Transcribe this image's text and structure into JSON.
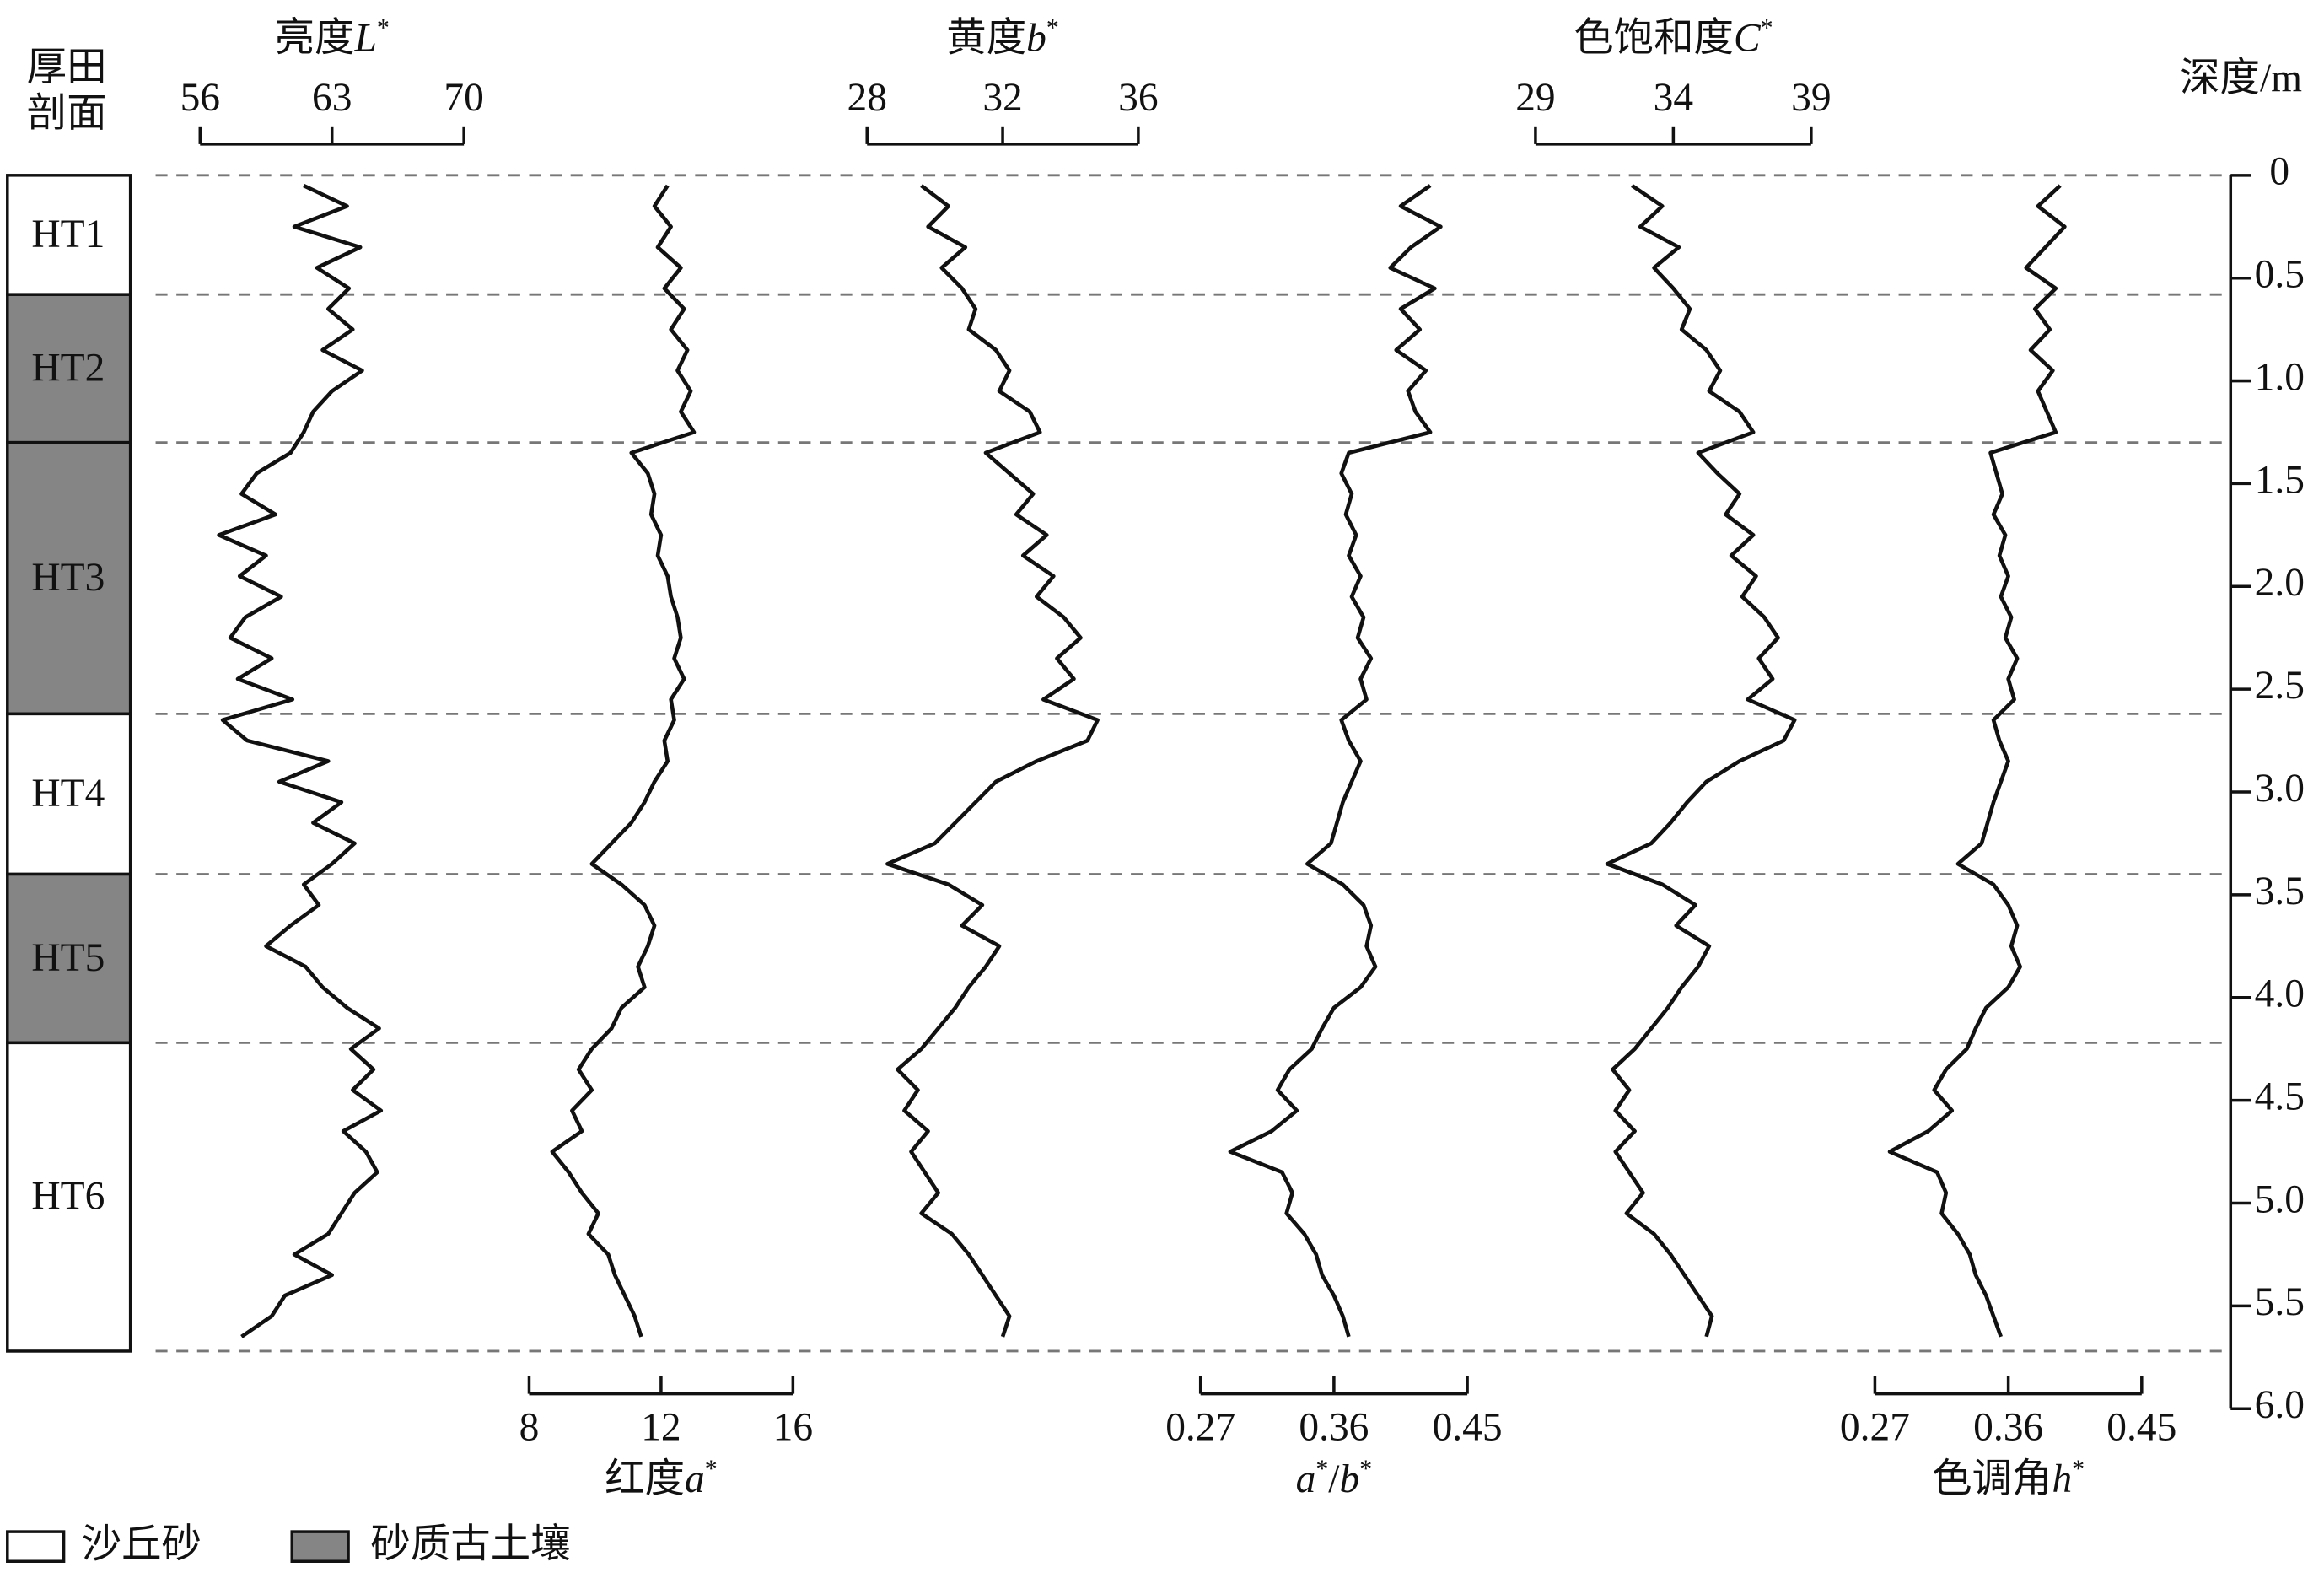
{
  "chart_data": {
    "type": "line",
    "section_label": [
      "厚田",
      "剖面"
    ],
    "y_label": "深度/m",
    "ylim": [
      0,
      6
    ],
    "yticks": [
      0,
      0.5,
      {
        "value": 1,
        "label": "1.0"
      },
      1.5,
      {
        "value": 2,
        "label": "2.0"
      },
      2.5,
      {
        "value": 3,
        "label": "3.0"
      },
      3.5,
      {
        "value": 4,
        "label": "4.0"
      },
      4.5,
      {
        "value": 5,
        "label": "5.0"
      },
      5.5,
      {
        "value": 6,
        "label": "6.0"
      }
    ],
    "legend": [
      {
        "name": "沙丘砂",
        "color": "#ffffff"
      },
      {
        "name": "砂质古土壤",
        "color": "#858585"
      }
    ],
    "units": [
      {
        "name": "HT1",
        "top": 0,
        "base": 0.58,
        "facies": 0
      },
      {
        "name": "HT2",
        "top": 0.58,
        "base": 1.3,
        "facies": 1
      },
      {
        "name": "HT3",
        "top": 1.3,
        "base": 2.62,
        "facies": 1
      },
      {
        "name": "HT4",
        "top": 2.62,
        "base": 3.4,
        "facies": 0
      },
      {
        "name": "HT5",
        "top": 3.4,
        "base": 4.22,
        "facies": 1
      },
      {
        "name": "HT6",
        "top": 4.22,
        "base": 5.72,
        "facies": 0
      }
    ],
    "x": [
      0.05,
      0.15,
      0.25,
      0.35,
      0.45,
      0.55,
      0.65,
      0.75,
      0.85,
      0.95,
      1.05,
      1.15,
      1.25,
      1.35,
      1.45,
      1.55,
      1.65,
      1.75,
      1.85,
      1.95,
      2.05,
      2.15,
      2.25,
      2.35,
      2.45,
      2.55,
      2.65,
      2.75,
      2.85,
      2.95,
      3.05,
      3.15,
      3.25,
      3.35,
      3.45,
      3.55,
      3.65,
      3.75,
      3.85,
      3.95,
      4.05,
      4.15,
      4.25,
      4.35,
      4.45,
      4.55,
      4.65,
      4.75,
      4.85,
      4.95,
      5.05,
      5.15,
      5.25,
      5.35,
      5.45,
      5.55,
      5.65
    ],
    "series": [
      {
        "name": [
          "亮度",
          "L",
          "*"
        ],
        "axis": "top",
        "color": "#111111",
        "xlim": [
          56,
          70
        ],
        "xticks": [
          56,
          63,
          70
        ],
        "values": [
          61.5,
          63.8,
          61.0,
          64.5,
          62.2,
          63.9,
          62.8,
          64.1,
          62.5,
          64.6,
          63.0,
          62.0,
          61.5,
          60.8,
          59.0,
          58.2,
          60.0,
          57.0,
          59.5,
          58.1,
          60.3,
          58.4,
          57.6,
          59.8,
          58.0,
          60.9,
          57.2,
          58.5,
          62.8,
          60.2,
          63.5,
          62.0,
          64.2,
          63.0,
          61.5,
          62.3,
          60.8,
          59.5,
          61.6,
          62.5,
          63.8,
          65.5,
          64.0,
          65.2,
          64.1,
          65.6,
          63.6,
          64.8,
          65.4,
          64.2,
          63.5,
          62.8,
          61.0,
          63.0,
          60.5,
          59.8,
          58.2
        ]
      },
      {
        "name": [
          "红度",
          "a",
          "*"
        ],
        "axis": "bottom",
        "color": "#111111",
        "xlim": [
          8,
          16
        ],
        "xticks": [
          8,
          12,
          16
        ],
        "values": [
          12.2,
          11.8,
          12.3,
          11.9,
          12.6,
          12.1,
          12.7,
          12.3,
          12.8,
          12.5,
          12.9,
          12.6,
          13.0,
          11.1,
          11.6,
          11.8,
          11.7,
          12.0,
          11.9,
          12.2,
          12.3,
          12.5,
          12.6,
          12.4,
          12.7,
          12.3,
          12.4,
          12.1,
          12.2,
          11.8,
          11.5,
          11.1,
          10.5,
          9.9,
          10.8,
          11.5,
          11.8,
          11.6,
          11.3,
          11.5,
          10.8,
          10.5,
          9.9,
          9.5,
          9.9,
          9.3,
          9.6,
          8.7,
          9.2,
          9.6,
          10.1,
          9.8,
          10.4,
          10.6,
          10.9,
          11.2,
          11.4
        ]
      },
      {
        "name": [
          "黄度",
          "b",
          "*"
        ],
        "axis": "top",
        "color": "#111111",
        "xlim": [
          28,
          36
        ],
        "xticks": [
          28,
          32,
          36
        ],
        "values": [
          29.6,
          30.4,
          29.8,
          30.9,
          30.2,
          30.8,
          31.2,
          31.0,
          31.8,
          32.2,
          31.9,
          32.8,
          33.1,
          31.5,
          32.2,
          32.9,
          32.4,
          33.3,
          32.6,
          33.5,
          33.0,
          33.8,
          34.3,
          33.6,
          34.1,
          33.2,
          34.8,
          34.5,
          33.0,
          31.8,
          31.2,
          30.6,
          30.0,
          28.6,
          30.4,
          31.4,
          30.8,
          31.9,
          31.5,
          31.0,
          30.6,
          30.1,
          29.6,
          28.9,
          29.5,
          29.1,
          29.8,
          29.3,
          29.7,
          30.1,
          29.6,
          30.5,
          31.0,
          31.4,
          31.8,
          32.2,
          32.0
        ]
      },
      {
        "name": [
          "a",
          "*",
          "/",
          "b",
          "*"
        ],
        "axis": "bottom",
        "color": "#111111",
        "xlim": [
          0.27,
          0.45
        ],
        "xticks": [
          0.27,
          0.36,
          0.45
        ],
        "values": [
          0.425,
          0.405,
          0.432,
          0.412,
          0.398,
          0.428,
          0.405,
          0.418,
          0.402,
          0.422,
          0.41,
          0.415,
          0.425,
          0.37,
          0.365,
          0.372,
          0.368,
          0.375,
          0.37,
          0.378,
          0.372,
          0.38,
          0.376,
          0.385,
          0.378,
          0.382,
          0.365,
          0.37,
          0.378,
          0.372,
          0.366,
          0.362,
          0.358,
          0.342,
          0.366,
          0.38,
          0.385,
          0.382,
          0.388,
          0.378,
          0.36,
          0.352,
          0.345,
          0.33,
          0.322,
          0.335,
          0.318,
          0.29,
          0.325,
          0.332,
          0.328,
          0.34,
          0.348,
          0.352,
          0.36,
          0.366,
          0.37
        ]
      },
      {
        "name": [
          "色饱和度",
          "C",
          "*"
        ],
        "axis": "top",
        "color": "#111111",
        "xlim": [
          29,
          39
        ],
        "xticks": [
          29,
          34,
          39
        ],
        "values": [
          32.5,
          33.6,
          32.8,
          34.2,
          33.3,
          34.0,
          34.6,
          34.3,
          35.2,
          35.7,
          35.3,
          36.4,
          36.9,
          34.9,
          35.6,
          36.4,
          35.9,
          36.9,
          36.1,
          37.0,
          36.5,
          37.3,
          37.8,
          37.1,
          37.6,
          36.7,
          38.4,
          38.0,
          36.4,
          35.2,
          34.5,
          33.9,
          33.2,
          31.6,
          33.6,
          34.8,
          34.1,
          35.3,
          34.9,
          34.3,
          33.8,
          33.2,
          32.6,
          31.8,
          32.4,
          31.9,
          32.6,
          31.9,
          32.4,
          32.9,
          32.3,
          33.3,
          33.9,
          34.4,
          34.9,
          35.4,
          35.2
        ]
      },
      {
        "name": [
          "色调角",
          "h",
          "*"
        ],
        "axis": "bottom",
        "color": "#111111",
        "xlim": [
          0.27,
          0.45
        ],
        "xticks": [
          0.27,
          0.36,
          0.45
        ],
        "values": [
          0.395,
          0.38,
          0.398,
          0.385,
          0.372,
          0.392,
          0.378,
          0.388,
          0.375,
          0.39,
          0.38,
          0.386,
          0.392,
          0.348,
          0.352,
          0.356,
          0.35,
          0.358,
          0.354,
          0.36,
          0.355,
          0.362,
          0.358,
          0.366,
          0.36,
          0.364,
          0.35,
          0.354,
          0.36,
          0.355,
          0.35,
          0.346,
          0.342,
          0.326,
          0.35,
          0.36,
          0.366,
          0.362,
          0.368,
          0.36,
          0.345,
          0.338,
          0.332,
          0.318,
          0.31,
          0.322,
          0.306,
          0.28,
          0.312,
          0.318,
          0.315,
          0.326,
          0.334,
          0.338,
          0.345,
          0.35,
          0.355
        ]
      }
    ]
  }
}
